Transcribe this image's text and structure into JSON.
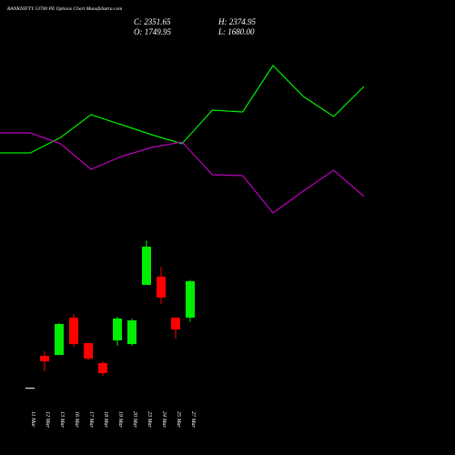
{
  "chart_data": [
    {
      "type": "candlestick",
      "title": "BANKNIFTY 53700 PE Options Chart MunafaSutra.com",
      "info": [
        "C: 2351.65",
        "H: 2374.95",
        "O: 1749.95",
        "L: 1680.00"
      ],
      "categories": [
        "11 Mar",
        "12 Mar",
        "13 Mar",
        "16 Mar",
        "17 Mar",
        "18 Mar",
        "19 Mar",
        "20 Mar",
        "23 Mar",
        "24 Mar",
        "25 Mar",
        "27 Mar"
      ],
      "open": [
        591,
        1118,
        1133,
        1750,
        1329,
        998,
        1374,
        1314,
        2292,
        2427,
        1750,
        1749.95
      ],
      "close": [
        591,
        1028,
        1645,
        1314,
        1073,
        833,
        1735,
        1705,
        2923,
        2081,
        1554,
        2351.65
      ],
      "high": [
        591,
        1194,
        1660,
        1810,
        1329,
        1028,
        1765,
        1735,
        3028,
        2592,
        1750,
        2374.95
      ],
      "low": [
        591,
        863,
        1133,
        1269,
        1043,
        787,
        1284,
        1284,
        2292,
        1976,
        1404,
        1680
      ],
      "up_color": "#00ee00",
      "down_color": "#ff0000",
      "flat_color": "#ffffff",
      "ylim": [
        -520,
        7000
      ]
    },
    {
      "type": "line",
      "categories": [
        null,
        null,
        null,
        null,
        null,
        null,
        null,
        null,
        null,
        null,
        null,
        null,
        null
      ],
      "series": [
        {
          "color": "#00ee00",
          "values": [
            82,
            82,
            99,
            124,
            113,
            102,
            92,
            129,
            127,
            178,
            144,
            122,
            155
          ]
        },
        {
          "color": "#bb00bb",
          "values": [
            104,
            104,
            92,
            64,
            78,
            88,
            94,
            58,
            57,
            16,
            40,
            63,
            34
          ]
        }
      ],
      "ylim": [
        0,
        250
      ]
    }
  ]
}
